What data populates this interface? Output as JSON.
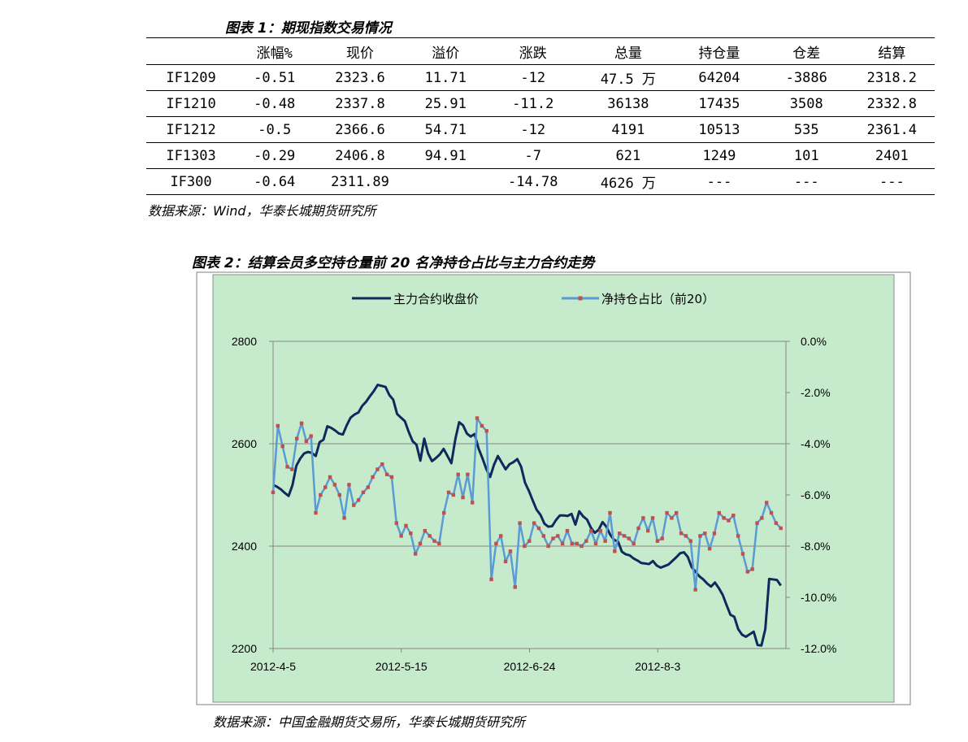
{
  "table1": {
    "caption": "图表 1：期现指数交易情况",
    "headers": [
      "",
      "涨幅%",
      "现价",
      "溢价",
      "涨跌",
      "总量",
      "持仓量",
      "仓差",
      "结算"
    ],
    "rows": [
      [
        "IF1209",
        "-0.51",
        "2323.6",
        "11.71",
        "-12",
        "47.5 万",
        "64204",
        "-3886",
        "2318.2"
      ],
      [
        "IF1210",
        "-0.48",
        "2337.8",
        "25.91",
        "-11.2",
        "36138",
        "17435",
        "3508",
        "2332.8"
      ],
      [
        "IF1212",
        "-0.5",
        "2366.6",
        "54.71",
        "-12",
        "4191",
        "10513",
        "535",
        "2361.4"
      ],
      [
        "IF1303",
        "-0.29",
        "2406.8",
        "94.91",
        "-7",
        "621",
        "1249",
        "101",
        "2401"
      ],
      [
        "IF300",
        "-0.64",
        "2311.89",
        "",
        "-14.78",
        "4626 万",
        "---",
        "---",
        "---"
      ]
    ],
    "source": "数据来源：Wind，华泰长城期货研究所"
  },
  "chart2": {
    "caption": "图表 2：结算会员多空持仓量前 20 名净持仓占比与主力合约走势",
    "source": "数据来源：中国金融期货交易所，华泰长城期货研究所"
  },
  "colors": {
    "plot_bg": "#c6ebcc",
    "price_line": "#0d2a5c",
    "net_line": "#5b9bd5",
    "marker": "#c0504d"
  },
  "chart_data": {
    "type": "line",
    "x_ticks": [
      "2012-4-5",
      "2012-5-15",
      "2012-6-24",
      "2012-8-3"
    ],
    "grid": true,
    "legend_position": "top",
    "left_axis": {
      "ylim": [
        2200,
        2800
      ],
      "ticks": [
        "2800",
        "2600",
        "2400",
        "2200"
      ]
    },
    "right_axis": {
      "ylim": [
        -12,
        0
      ],
      "ticks": [
        "0.0%",
        "-2.0%",
        "-4.0%",
        "-6.0%",
        "-8.0%",
        "-10.0%",
        "-12.0%"
      ]
    },
    "series": [
      {
        "name": "主力合约收盘价",
        "axis": "left",
        "values": [
          2520,
          2516,
          2511,
          2504,
          2498,
          2519,
          2557,
          2571,
          2581,
          2584,
          2582,
          2576,
          2603,
          2608,
          2634,
          2631,
          2626,
          2620,
          2618,
          2636,
          2651,
          2657,
          2661,
          2674,
          2682,
          2693,
          2703,
          2715,
          2713,
          2711,
          2695,
          2686,
          2658,
          2651,
          2644,
          2623,
          2605,
          2598,
          2567,
          2610,
          2581,
          2566,
          2572,
          2579,
          2590,
          2576,
          2562,
          2608,
          2642,
          2636,
          2620,
          2614,
          2619,
          2591,
          2572,
          2551,
          2535,
          2559,
          2576,
          2563,
          2550,
          2560,
          2564,
          2570,
          2555,
          2524,
          2508,
          2489,
          2471,
          2461,
          2444,
          2438,
          2439,
          2451,
          2460,
          2460,
          2459,
          2463,
          2442,
          2468,
          2458,
          2452,
          2436,
          2426,
          2432,
          2447,
          2438,
          2422,
          2412,
          2409,
          2389,
          2384,
          2382,
          2376,
          2372,
          2367,
          2366,
          2365,
          2371,
          2362,
          2358,
          2361,
          2364,
          2371,
          2378,
          2386,
          2388,
          2379,
          2359,
          2350,
          2341,
          2335,
          2327,
          2321,
          2329,
          2318,
          2305,
          2285,
          2266,
          2262,
          2238,
          2227,
          2223,
          2228,
          2233,
          2207,
          2206,
          2238,
          2336,
          2335,
          2334,
          2323
        ]
      },
      {
        "name": "净持仓占比（前20）",
        "axis": "right",
        "values": [
          -5.9,
          -3.3,
          -4.1,
          -4.9,
          -5.0,
          -3.8,
          -3.2,
          -3.9,
          -3.7,
          -6.7,
          -6.0,
          -5.7,
          -5.3,
          -5.6,
          -6.0,
          -6.9,
          -5.6,
          -6.4,
          -6.2,
          -5.9,
          -5.7,
          -5.3,
          -5.0,
          -4.8,
          -5.2,
          -5.3,
          -7.1,
          -7.6,
          -7.2,
          -7.5,
          -8.3,
          -7.9,
          -7.4,
          -7.6,
          -7.8,
          -7.9,
          -6.7,
          -5.9,
          -6.0,
          -5.2,
          -6.1,
          -5.2,
          -6.3,
          -3.0,
          -3.3,
          -3.5,
          -9.3,
          -7.9,
          -7.6,
          -8.6,
          -8.2,
          -9.6,
          -7.1,
          -8.0,
          -7.8,
          -7.1,
          -7.3,
          -7.6,
          -8.0,
          -7.7,
          -7.6,
          -7.9,
          -7.4,
          -7.9,
          -7.9,
          -8.0,
          -7.8,
          -7.4,
          -7.9,
          -7.4,
          -7.8,
          -6.7,
          -8.2,
          -7.5,
          -7.6,
          -7.7,
          -7.9,
          -7.3,
          -6.9,
          -7.4,
          -6.9,
          -7.8,
          -7.7,
          -6.7,
          -6.9,
          -6.7,
          -7.5,
          -7.6,
          -7.8,
          -9.7,
          -7.6,
          -7.5,
          -8.1,
          -7.5,
          -6.7,
          -6.9,
          -7.0,
          -6.8,
          -7.6,
          -8.3,
          -9.0,
          -8.9,
          -7.1,
          -6.9,
          -6.3,
          -6.7,
          -7.1,
          -7.3
        ]
      }
    ]
  }
}
